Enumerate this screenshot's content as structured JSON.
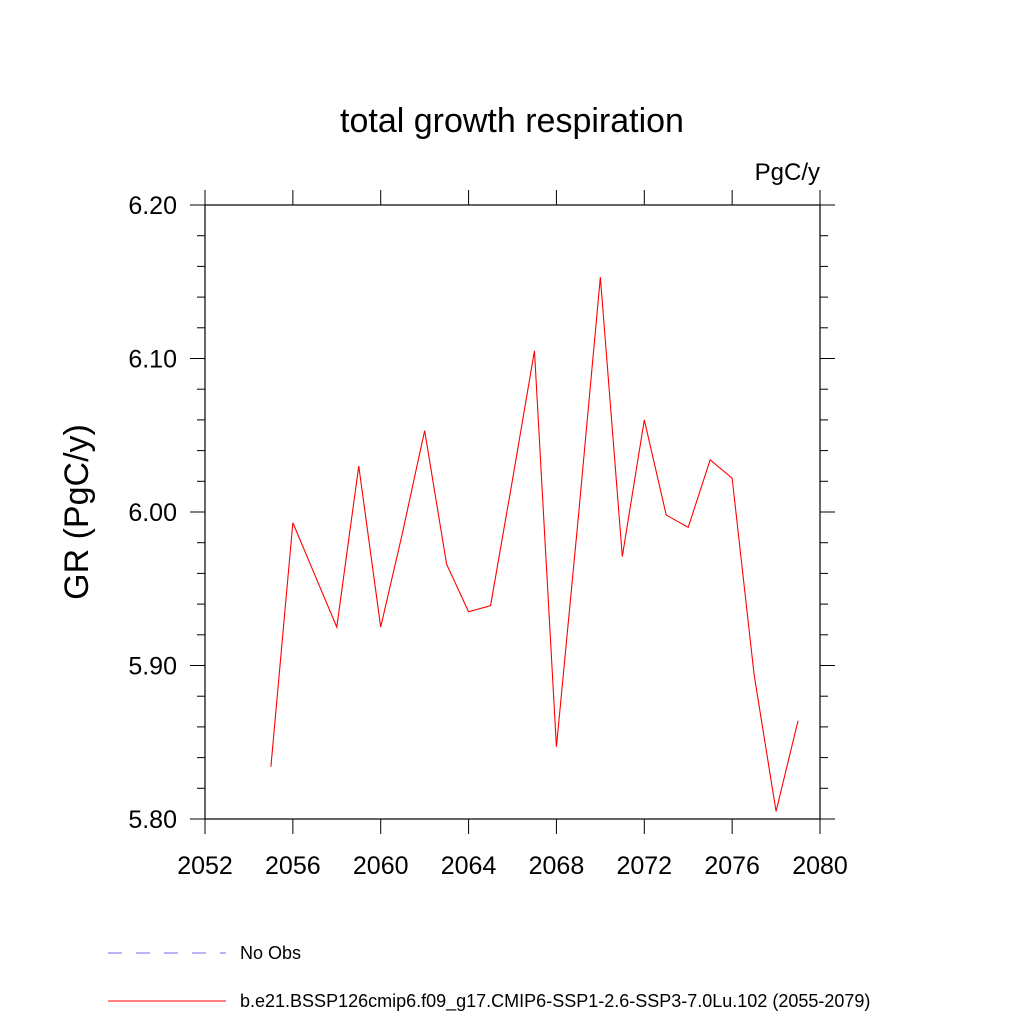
{
  "chart_data": {
    "type": "line",
    "title": "total growth respiration",
    "units": "PgC/y",
    "ylabel": "GR  (PgC/y)",
    "xlabel": "",
    "xlim": [
      2052,
      2080
    ],
    "ylim": [
      5.8,
      6.2
    ],
    "x_ticks": [
      2052,
      2056,
      2060,
      2064,
      2068,
      2072,
      2076,
      2080
    ],
    "x_tick_labels": [
      "2052",
      "2056",
      "2060",
      "2064",
      "2068",
      "2072",
      "2076",
      "2080"
    ],
    "y_ticks": [
      5.8,
      5.9,
      6.0,
      6.1,
      6.2
    ],
    "y_tick_labels": [
      "5.80",
      "5.90",
      "6.00",
      "6.10",
      "6.20"
    ],
    "grid": false,
    "legend_position": "bottom",
    "series": [
      {
        "name": "b.e21.BSSP126cmip6.f09_g17.CMIP6-SSP1-2.6-SSP3-7.0Lu.102 (2055-2079)",
        "color": "#ff0000",
        "x": [
          2055,
          2056,
          2057,
          2058,
          2059,
          2060,
          2061,
          2062,
          2063,
          2064,
          2065,
          2066,
          2067,
          2068,
          2069,
          2070,
          2071,
          2072,
          2073,
          2074,
          2075,
          2076,
          2077,
          2078,
          2079
        ],
        "values": [
          5.834,
          5.993,
          5.959,
          5.925,
          6.03,
          5.925,
          5.987,
          6.053,
          5.966,
          5.935,
          5.939,
          6.021,
          6.105,
          5.847,
          5.997,
          6.153,
          5.971,
          6.06,
          5.998,
          5.99,
          6.034,
          6.022,
          5.894,
          5.805,
          5.864
        ]
      }
    ],
    "legend": [
      {
        "label": "No Obs",
        "color": "#7b68ee",
        "style": "dashed"
      },
      {
        "label": "b.e21.BSSP126cmip6.f09_g17.CMIP6-SSP1-2.6-SSP3-7.0Lu.102 (2055-2079)",
        "color": "#ff0000",
        "style": "solid"
      }
    ]
  }
}
